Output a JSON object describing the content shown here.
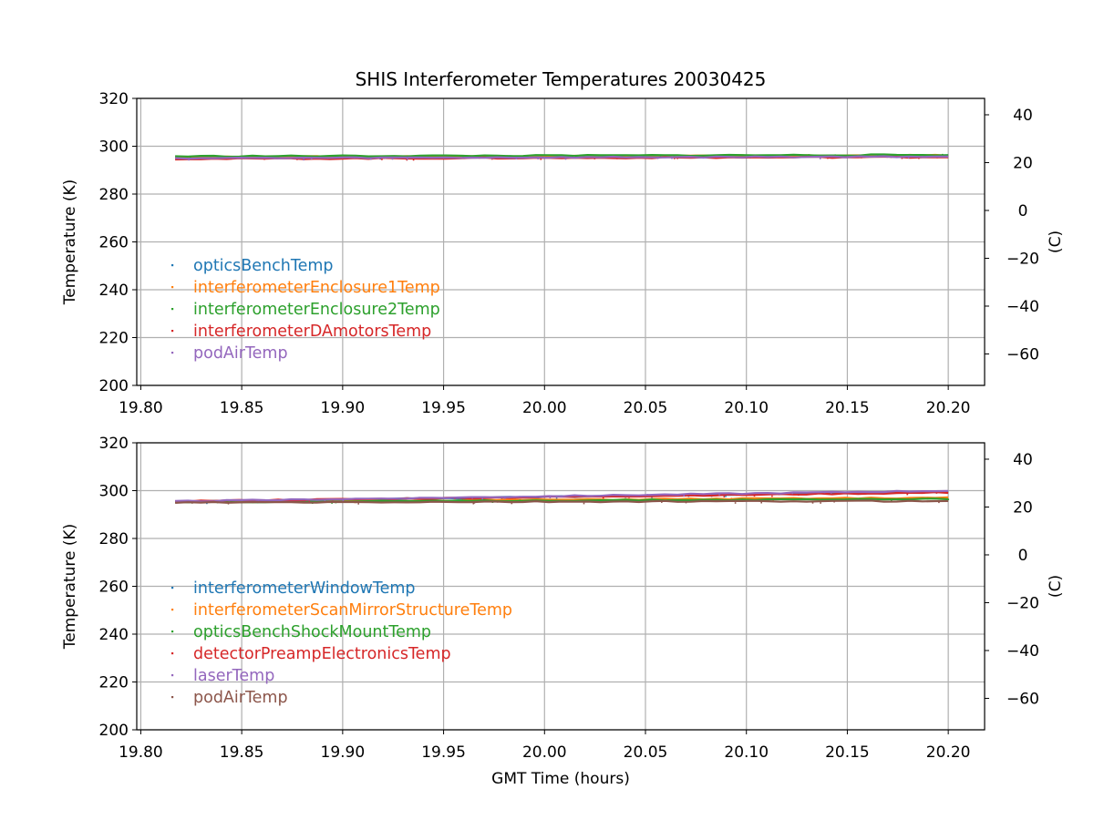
{
  "figure": {
    "title": "SHIS Interferometer Temperatures 20030425",
    "xlabel": "GMT Time (hours)"
  },
  "colors": {
    "tab_blue": "#1f77b4",
    "tab_orange": "#ff7f0e",
    "tab_green": "#2ca02c",
    "tab_red": "#d62728",
    "tab_purple": "#9467bd",
    "tab_brown": "#8c564b",
    "grid": "#b0b0b0"
  },
  "chart_data": [
    {
      "type": "scatter",
      "title": "SHIS Interferometer Temperatures 20030425",
      "xlabel": "",
      "ylabel": "Temperature (K)",
      "y2label": "(C)",
      "xlim": [
        19.798,
        20.218
      ],
      "ylim": [
        200,
        320
      ],
      "y2lim": [
        -73.15,
        46.85
      ],
      "xticks": [
        19.8,
        19.85,
        19.9,
        19.95,
        20.0,
        20.05,
        20.1,
        20.15,
        20.2
      ],
      "xtick_labels": [
        "19.80",
        "19.85",
        "19.90",
        "19.95",
        "20.00",
        "20.05",
        "20.10",
        "20.15",
        "20.20"
      ],
      "yticks": [
        200,
        220,
        240,
        260,
        280,
        300,
        320
      ],
      "ytick_labels": [
        "200",
        "220",
        "240",
        "260",
        "280",
        "300",
        "320"
      ],
      "y2ticks": [
        40,
        20,
        0,
        -20,
        -40,
        -60
      ],
      "y2tick_labels": [
        "40",
        "20",
        "0",
        "−20",
        "−40",
        "−60"
      ],
      "grid": true,
      "legend_position": "center-left",
      "series": [
        {
          "name": "opticsBenchTemp",
          "color": "#1f77b4",
          "x": [
            19.817,
            20.2
          ],
          "y": [
            295.3,
            296.0
          ]
        },
        {
          "name": "interferometerEnclosure1Temp",
          "color": "#ff7f0e",
          "x": [
            19.817,
            20.2
          ],
          "y": [
            295.5,
            296.2
          ]
        },
        {
          "name": "interferometerEnclosure2Temp",
          "color": "#2ca02c",
          "x": [
            19.817,
            20.2
          ],
          "y": [
            295.8,
            296.4
          ]
        },
        {
          "name": "interferometerDAmotorsTemp",
          "color": "#d62728",
          "x": [
            19.817,
            20.2
          ],
          "y": [
            294.7,
            295.5
          ]
        },
        {
          "name": "podAirTemp",
          "color": "#9467bd",
          "x": [
            19.817,
            20.2
          ],
          "y": [
            295.0,
            295.7
          ]
        }
      ]
    },
    {
      "type": "scatter",
      "title": "",
      "xlabel": "GMT Time (hours)",
      "ylabel": "Temperature (K)",
      "y2label": "(C)",
      "xlim": [
        19.798,
        20.218
      ],
      "ylim": [
        200,
        320
      ],
      "y2lim": [
        -73.15,
        46.85
      ],
      "xticks": [
        19.8,
        19.85,
        19.9,
        19.95,
        20.0,
        20.05,
        20.1,
        20.15,
        20.2
      ],
      "xtick_labels": [
        "19.80",
        "19.85",
        "19.90",
        "19.95",
        "20.00",
        "20.05",
        "20.10",
        "20.15",
        "20.20"
      ],
      "yticks": [
        200,
        220,
        240,
        260,
        280,
        300,
        320
      ],
      "ytick_labels": [
        "200",
        "220",
        "240",
        "260",
        "280",
        "300",
        "320"
      ],
      "y2ticks": [
        40,
        20,
        0,
        -20,
        -40,
        -60
      ],
      "y2tick_labels": [
        "40",
        "20",
        "0",
        "−20",
        "−40",
        "−60"
      ],
      "grid": true,
      "legend_position": "center-left",
      "series": [
        {
          "name": "interferometerWindowTemp",
          "color": "#1f77b4",
          "x": [
            19.817,
            20.2
          ],
          "y": [
            295.3,
            299.6
          ]
        },
        {
          "name": "interferometerScanMirrorStructureTemp",
          "color": "#ff7f0e",
          "x": [
            19.817,
            20.2
          ],
          "y": [
            295.4,
            297.0
          ]
        },
        {
          "name": "opticsBenchShockMountTemp",
          "color": "#2ca02c",
          "x": [
            19.817,
            20.2
          ],
          "y": [
            295.2,
            296.6
          ]
        },
        {
          "name": "detectorPreampElectronicsTemp",
          "color": "#d62728",
          "x": [
            19.817,
            20.2
          ],
          "y": [
            295.6,
            299.2
          ]
        },
        {
          "name": "laserTemp",
          "color": "#9467bd",
          "x": [
            19.817,
            20.2
          ],
          "y": [
            295.5,
            300.0
          ]
        },
        {
          "name": "podAirTemp",
          "color": "#8c564b",
          "x": [
            19.817,
            20.2
          ],
          "y": [
            295.0,
            295.7
          ]
        }
      ]
    }
  ]
}
